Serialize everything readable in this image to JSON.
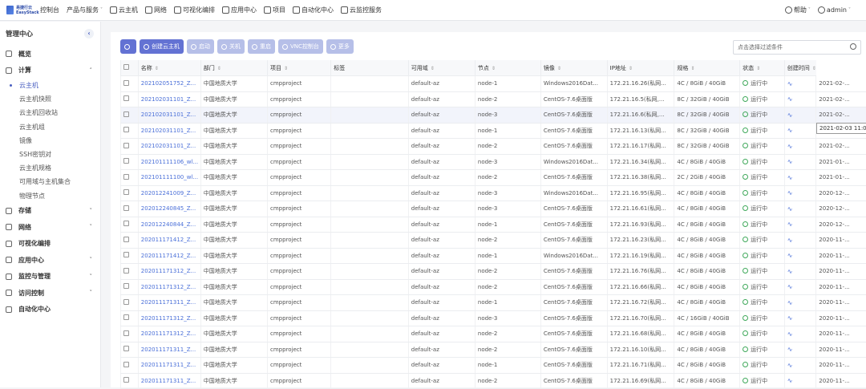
{
  "topbar": {
    "logo_line1": "易捷行云",
    "logo_line2": "EasyStack",
    "nav": [
      {
        "label": "控制台",
        "icon": "",
        "caret": false
      },
      {
        "label": "产品与服务",
        "icon": "",
        "caret": true
      },
      {
        "label": "云主机",
        "icon": "cloud-icon",
        "caret": false
      },
      {
        "label": "网络",
        "icon": "network-icon",
        "caret": false
      },
      {
        "label": "可视化编排",
        "icon": "orchestration-icon",
        "caret": false
      },
      {
        "label": "应用中心",
        "icon": "app-center-icon",
        "caret": false
      },
      {
        "label": "项目",
        "icon": "project-icon",
        "caret": false
      },
      {
        "label": "自动化中心",
        "icon": "automation-icon",
        "caret": false
      },
      {
        "label": "云监控服务",
        "icon": "monitor-icon",
        "caret": false
      }
    ],
    "help": "帮助",
    "user": "admin"
  },
  "sidebar": {
    "title": "管理中心",
    "groups": [
      {
        "label": "概览",
        "icon": "overview-icon",
        "chevron": "",
        "subs": []
      },
      {
        "label": "计算",
        "icon": "compute-icon",
        "chevron": "˄",
        "subs": [
          "云主机",
          "云主机快照",
          "云主机回收站",
          "云主机组",
          "镜像",
          "SSH密钥对",
          "云主机规格",
          "可用域与主机集合",
          "物理节点"
        ]
      },
      {
        "label": "存储",
        "icon": "storage-icon",
        "chevron": "˅",
        "subs": []
      },
      {
        "label": "网络",
        "icon": "network-icon",
        "chevron": "˅",
        "subs": []
      },
      {
        "label": "可视化编排",
        "icon": "orchestration-icon",
        "chevron": "",
        "subs": []
      },
      {
        "label": "应用中心",
        "icon": "app-center-icon",
        "chevron": "˅",
        "subs": []
      },
      {
        "label": "监控与管理",
        "icon": "monitor-icon",
        "chevron": "˅",
        "subs": []
      },
      {
        "label": "访问控制",
        "icon": "access-icon",
        "chevron": "˅",
        "subs": []
      },
      {
        "label": "自动化中心",
        "icon": "automation-icon",
        "chevron": "",
        "subs": []
      }
    ],
    "active_sub": "云主机"
  },
  "toolbar": {
    "buttons": [
      {
        "label": "",
        "name": "refresh-button",
        "primary": true
      },
      {
        "label": "创建云主机",
        "name": "create-vm-button",
        "primary": true
      },
      {
        "label": "启动",
        "name": "start-button",
        "primary": false
      },
      {
        "label": "关机",
        "name": "shutdown-button",
        "primary": false
      },
      {
        "label": "重启",
        "name": "reboot-button",
        "primary": false
      },
      {
        "label": "VNC控制台",
        "name": "vnc-console-button",
        "primary": false
      },
      {
        "label": "更多",
        "name": "more-button",
        "primary": false
      }
    ]
  },
  "search": {
    "placeholder": "点击选择过滤条件"
  },
  "table": {
    "columns": [
      "名称",
      "部门",
      "项目",
      "标签",
      "可用域",
      "节点",
      "镜像",
      "IP地址",
      "规格",
      "状态",
      "",
      "创建时间"
    ],
    "status_text": "运行中",
    "rows": [
      [
        "202102051752_Z...",
        "中国地质大学",
        "cmpproject",
        "",
        "default-az",
        "node-1",
        "Windows2016Dat...",
        "172.21.16.26(私网...",
        "4C / 8GiB / 40GiB",
        "2021-02-..."
      ],
      [
        "202102031101_Z...",
        "中国地质大学",
        "cmpproject",
        "",
        "default-az",
        "node-2",
        "CentOS-7.6桌面版",
        "172.21.16.5(私网,...",
        "8C / 32GiB / 40GiB",
        "2021-02-..."
      ],
      [
        "202102031101_Z...",
        "中国地质大学",
        "cmpproject",
        "",
        "default-az",
        "node-3",
        "CentOS-7.6桌面版",
        "172.21.16.6(私网,...",
        "8C / 32GiB / 40GiB",
        "2021-02-..."
      ],
      [
        "202102031101_Z...",
        "中国地质大学",
        "cmpproject",
        "",
        "default-az",
        "node-1",
        "CentOS-7.6桌面版",
        "172.21.16.13(私网...",
        "8C / 32GiB / 40GiB",
        "2021-02-03 11:0"
      ],
      [
        "202102031101_Z...",
        "中国地质大学",
        "cmpproject",
        "",
        "default-az",
        "node-2",
        "CentOS-7.6桌面版",
        "172.21.16.17(私网...",
        "8C / 32GiB / 40GiB",
        "2021-02-..."
      ],
      [
        "202101111106_wl...",
        "中国地质大学",
        "cmpproject",
        "",
        "default-az",
        "node-3",
        "Windows2016Dat...",
        "172.21.16.34(私网...",
        "4C / 8GiB / 40GiB",
        "2021-01-..."
      ],
      [
        "202101111100_wl...",
        "中国地质大学",
        "cmpproject",
        "",
        "default-az",
        "node-2",
        "CentOS-7.6桌面版",
        "172.21.16.38(私网...",
        "2C / 2GiB / 40GiB",
        "2021-01-..."
      ],
      [
        "202012241009_Z...",
        "中国地质大学",
        "cmpproject",
        "",
        "default-az",
        "node-3",
        "Windows2016Dat...",
        "172.21.16.95(私网...",
        "4C / 8GiB / 40GiB",
        "2020-12-..."
      ],
      [
        "202012240845_Z...",
        "中国地质大学",
        "cmpproject",
        "",
        "default-az",
        "node-3",
        "CentOS-7.6桌面版",
        "172.21.16.61(私网...",
        "4C / 8GiB / 40GiB",
        "2020-12-..."
      ],
      [
        "202012240844_Z...",
        "中国地质大学",
        "cmpproject",
        "",
        "default-az",
        "node-1",
        "CentOS-7.6桌面版",
        "172.21.16.93(私网...",
        "4C / 8GiB / 40GiB",
        "2020-12-..."
      ],
      [
        "202011171412_Z...",
        "中国地质大学",
        "cmpproject",
        "",
        "default-az",
        "node-2",
        "CentOS-7.6桌面版",
        "172.21.16.23(私网...",
        "4C / 8GiB / 40GiB",
        "2020-11-..."
      ],
      [
        "202011171412_Z...",
        "中国地质大学",
        "cmpproject",
        "",
        "default-az",
        "node-1",
        "Windows2016Dat...",
        "172.21.16.19(私网...",
        "4C / 8GiB / 40GiB",
        "2020-11-..."
      ],
      [
        "202011171312_Z...",
        "中国地质大学",
        "cmpproject",
        "",
        "default-az",
        "node-2",
        "CentOS-7.6桌面版",
        "172.21.16.76(私网...",
        "4C / 8GiB / 40GiB",
        "2020-11-..."
      ],
      [
        "202011171312_Z...",
        "中国地质大学",
        "cmpproject",
        "",
        "default-az",
        "node-2",
        "CentOS-7.6桌面版",
        "172.21.16.66(私网...",
        "4C / 8GiB / 40GiB",
        "2020-11-..."
      ],
      [
        "202011171311_Z...",
        "中国地质大学",
        "cmpproject",
        "",
        "default-az",
        "node-1",
        "CentOS-7.6桌面版",
        "172.21.16.72(私网...",
        "4C / 8GiB / 40GiB",
        "2020-11-..."
      ],
      [
        "202011171312_Z...",
        "中国地质大学",
        "cmpproject",
        "",
        "default-az",
        "node-3",
        "CentOS-7.6桌面版",
        "172.21.16.70(私网...",
        "4C / 16GiB / 40GiB",
        "2020-11-..."
      ],
      [
        "202011171312_Z...",
        "中国地质大学",
        "cmpproject",
        "",
        "default-az",
        "node-2",
        "CentOS-7.6桌面版",
        "172.21.16.68(私网...",
        "4C / 8GiB / 40GiB",
        "2020-11-..."
      ],
      [
        "202011171311_Z...",
        "中国地质大学",
        "cmpproject",
        "",
        "default-az",
        "node-2",
        "CentOS-7.6桌面版",
        "172.21.16.10(私网...",
        "4C / 8GiB / 40GiB",
        "2020-11-..."
      ],
      [
        "202011171311_Z...",
        "中国地质大学",
        "cmpproject",
        "",
        "default-az",
        "node-1",
        "CentOS-7.6桌面版",
        "172.21.16.71(私网...",
        "4C / 8GiB / 40GiB",
        "2020-11-..."
      ],
      [
        "202011171311_Z...",
        "中国地质大学",
        "cmpproject",
        "",
        "default-az",
        "node-2",
        "CentOS-7.6桌面版",
        "172.21.16.69(私网...",
        "4C / 8GiB / 40GiB",
        "2020-11-..."
      ]
    ]
  },
  "tooltip": "2021-02-03 11:0",
  "colors": {
    "accent": "#6372d3",
    "link": "#4a6fd8",
    "ok": "#3fa85a"
  }
}
